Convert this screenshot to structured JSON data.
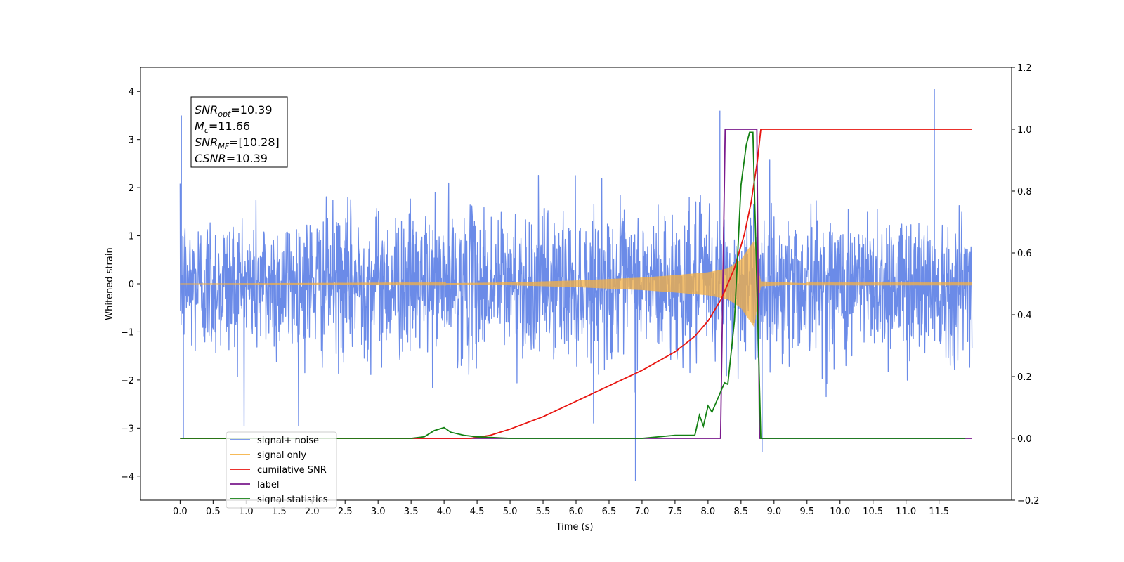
{
  "chart_data": {
    "type": "line",
    "xlabel": "Time (s)",
    "ylabel_left": "Whitened strain",
    "ylabel_right": "",
    "xlim": [
      -0.6,
      12.6
    ],
    "ylim_left": [
      -4.5,
      4.5
    ],
    "ylim_right": [
      -0.2,
      1.2
    ],
    "x_ticks": [
      0.0,
      0.5,
      1.0,
      1.5,
      2.0,
      2.5,
      3.0,
      3.5,
      4.0,
      4.5,
      5.0,
      5.5,
      6.0,
      6.5,
      7.0,
      7.5,
      8.0,
      8.5,
      9.0,
      9.5,
      10.0,
      10.5,
      11.0,
      11.5
    ],
    "x_tick_labels": [
      "0.0",
      "0.5",
      "1.0",
      "1.5",
      "2.0",
      "2.5",
      "3.0",
      "3.5",
      "4.0",
      "4.5",
      "5.0",
      "5.5",
      "6.0",
      "6.5",
      "7.0",
      "7.5",
      "8.0",
      "8.5",
      "9.0",
      "9.5",
      "10.0",
      "10.5",
      "11.0",
      "11.5"
    ],
    "y_left_ticks": [
      -4,
      -3,
      -2,
      -1,
      0,
      1,
      2,
      3,
      4
    ],
    "y_left_tick_labels": [
      "−4",
      "−3",
      "−2",
      "−1",
      "0",
      "1",
      "2",
      "3",
      "4"
    ],
    "y_right_ticks": [
      -0.2,
      0.0,
      0.2,
      0.4,
      0.6,
      0.8,
      1.0,
      1.2
    ],
    "y_right_tick_labels": [
      "−0.2",
      "0.0",
      "0.2",
      "0.4",
      "0.6",
      "0.8",
      "1.0",
      "1.2"
    ],
    "grid": false,
    "legend_position": "bottom-left",
    "stats_box": {
      "lines": [
        {
          "main": "SNR",
          "sub": "opt",
          "value": "=10.39"
        },
        {
          "main": "M",
          "sub": "c",
          "value": "=11.66"
        },
        {
          "main": "SNR",
          "sub": "MF",
          "value": "=[10.28]"
        },
        {
          "main": "CSNR",
          "sub": "",
          "value": "=10.39"
        }
      ]
    },
    "series": [
      {
        "name": "signal+ noise",
        "color": "#6b8be8",
        "axis": "left",
        "noise_std": 0.75,
        "x_range": [
          0.0,
          12.0
        ],
        "spikes": [
          [
            0.02,
            3.5
          ],
          [
            0.05,
            -3.2
          ],
          [
            6.9,
            -4.1
          ],
          [
            8.18,
            3.6
          ],
          [
            8.82,
            -3.5
          ],
          [
            11.43,
            4.05
          ]
        ]
      },
      {
        "name": "signal only",
        "color": "#f5b041",
        "axis": "left",
        "envelope": [
          [
            0.0,
            0.0
          ],
          [
            4.0,
            0.01
          ],
          [
            5.0,
            0.03
          ],
          [
            6.0,
            0.07
          ],
          [
            7.0,
            0.13
          ],
          [
            7.5,
            0.18
          ],
          [
            8.0,
            0.24
          ],
          [
            8.3,
            0.32
          ],
          [
            8.5,
            0.5
          ],
          [
            8.6,
            0.7
          ],
          [
            8.7,
            0.9
          ],
          [
            8.75,
            0.4
          ],
          [
            8.8,
            0.05
          ],
          [
            9.5,
            0.01
          ],
          [
            12.0,
            0.01
          ]
        ]
      },
      {
        "name": "cumilative SNR",
        "color": "#e8140f",
        "axis": "right",
        "x": [
          0.0,
          4.4,
          4.7,
          5.0,
          5.5,
          6.0,
          6.5,
          7.0,
          7.5,
          7.8,
          8.0,
          8.2,
          8.4,
          8.55,
          8.65,
          8.75,
          8.8,
          8.85,
          12.0
        ],
        "y": [
          0.0,
          0.0,
          0.01,
          0.03,
          0.07,
          0.12,
          0.17,
          0.22,
          0.28,
          0.33,
          0.38,
          0.45,
          0.55,
          0.66,
          0.76,
          0.9,
          1.0,
          1.0,
          1.0
        ]
      },
      {
        "name": "label",
        "color": "#7a1a8c",
        "axis": "right",
        "x": [
          0.0,
          8.19,
          8.26,
          8.74,
          8.78,
          12.0
        ],
        "y": [
          0.0,
          0.0,
          1.0,
          1.0,
          0.0,
          0.0
        ]
      },
      {
        "name": "signal statistics",
        "color": "#128012",
        "axis": "right",
        "x": [
          0.0,
          3.0,
          3.5,
          3.7,
          3.85,
          4.0,
          4.1,
          4.3,
          4.5,
          5.0,
          6.0,
          7.0,
          7.5,
          7.8,
          7.87,
          7.93,
          8.0,
          8.06,
          8.15,
          8.25,
          8.3,
          8.4,
          8.5,
          8.58,
          8.63,
          8.68,
          8.74,
          8.8,
          8.9,
          11.9
        ],
        "y": [
          0.0,
          0.0,
          0.0,
          0.005,
          0.025,
          0.035,
          0.02,
          0.01,
          0.005,
          0.0,
          0.0,
          0.0,
          0.01,
          0.01,
          0.075,
          0.04,
          0.105,
          0.085,
          0.13,
          0.18,
          0.175,
          0.38,
          0.82,
          0.95,
          0.99,
          0.99,
          0.5,
          0.0,
          0.0,
          0.0
        ]
      }
    ],
    "legend": [
      {
        "label": "signal+ noise",
        "color": "#6b8be8"
      },
      {
        "label": "signal only",
        "color": "#f5b041"
      },
      {
        "label": "cumilative SNR",
        "color": "#e8140f"
      },
      {
        "label": "label",
        "color": "#7a1a8c"
      },
      {
        "label": "signal statistics",
        "color": "#128012"
      }
    ]
  }
}
